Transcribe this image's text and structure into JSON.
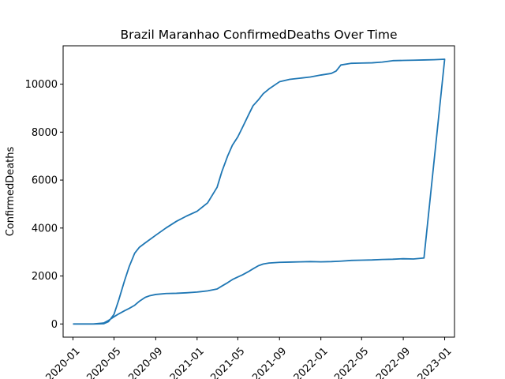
{
  "chart_data": {
    "type": "line",
    "title": "Brazil Maranhao ConfirmedDeaths Over Time",
    "xlabel": "",
    "ylabel": "ConfirmedDeaths",
    "xlim": [
      "2019-12-03",
      "2023-01-30"
    ],
    "ylim": [
      -550,
      11600
    ],
    "x_ticks": [
      "2020-01",
      "2020-05",
      "2020-09",
      "2021-01",
      "2021-05",
      "2021-09",
      "2022-01",
      "2022-05",
      "2022-09",
      "2023-01"
    ],
    "y_ticks": [
      0,
      2000,
      4000,
      6000,
      8000,
      10000
    ],
    "grid": false,
    "series_color": "#1f77b4",
    "series": [
      {
        "x": [
          "2020-01-01",
          "2020-02-01",
          "2020-03-01",
          "2020-04-01",
          "2020-04-15",
          "2020-05-01",
          "2020-05-15",
          "2020-06-01",
          "2020-06-15",
          "2020-07-01",
          "2020-07-15",
          "2020-08-01",
          "2020-09-01",
          "2020-10-01",
          "2020-11-01",
          "2020-12-01",
          "2021-01-01",
          "2021-02-01",
          "2021-03-01",
          "2021-03-15",
          "2021-04-01",
          "2021-04-15",
          "2021-05-01",
          "2021-05-15",
          "2021-06-01",
          "2021-06-15",
          "2021-07-01",
          "2021-07-15",
          "2021-08-01",
          "2021-09-01",
          "2021-10-01",
          "2021-11-01",
          "2021-12-01",
          "2022-01-01",
          "2022-02-01",
          "2022-02-15",
          "2022-03-01",
          "2022-04-01",
          "2022-05-01",
          "2022-06-01",
          "2022-07-01",
          "2022-08-01",
          "2022-09-01",
          "2022-10-01",
          "2022-11-01",
          "2022-12-01",
          "2023-01-01",
          "2022-11-01",
          "2022-10-01",
          "2022-09-01",
          "2022-08-01",
          "2022-07-01",
          "2022-06-01",
          "2022-05-01",
          "2022-04-01",
          "2022-03-01",
          "2022-02-01",
          "2022-01-01",
          "2021-12-01",
          "2021-11-01",
          "2021-10-01",
          "2021-09-01",
          "2021-08-01",
          "2021-07-15",
          "2021-07-01",
          "2021-06-15",
          "2021-06-01",
          "2021-05-15",
          "2021-05-01",
          "2021-04-15",
          "2021-04-01",
          "2021-03-15",
          "2021-03-01",
          "2021-02-01",
          "2021-01-01",
          "2020-12-01",
          "2020-11-01",
          "2020-10-01",
          "2020-09-01",
          "2020-08-15",
          "2020-08-01",
          "2020-07-15",
          "2020-07-01",
          "2020-06-15",
          "2020-06-01",
          "2020-05-15",
          "2020-05-01",
          "2020-04-15",
          "2020-04-01",
          "2020-03-01",
          "2020-02-01",
          "2020-01-01",
          "2020-01-01"
        ],
        "y": [
          0,
          0,
          0,
          10,
          100,
          400,
          1000,
          1800,
          2400,
          2950,
          3200,
          3380,
          3700,
          4000,
          4280,
          4500,
          4700,
          5050,
          5700,
          6350,
          7000,
          7450,
          7800,
          8200,
          8700,
          9100,
          9350,
          9600,
          9800,
          10100,
          10200,
          10250,
          10300,
          10380,
          10450,
          10550,
          10800,
          10870,
          10880,
          10890,
          10920,
          10980,
          10990,
          11000,
          11010,
          11020,
          11040,
          2750,
          2710,
          2720,
          2700,
          2690,
          2670,
          2660,
          2650,
          2620,
          2600,
          2590,
          2600,
          2590,
          2580,
          2570,
          2540,
          2500,
          2430,
          2300,
          2180,
          2050,
          1960,
          1850,
          1720,
          1580,
          1460,
          1380,
          1330,
          1300,
          1280,
          1270,
          1230,
          1180,
          1110,
          950,
          780,
          650,
          550,
          420,
          300,
          150,
          40,
          0,
          0,
          0,
          0
        ]
      }
    ]
  }
}
